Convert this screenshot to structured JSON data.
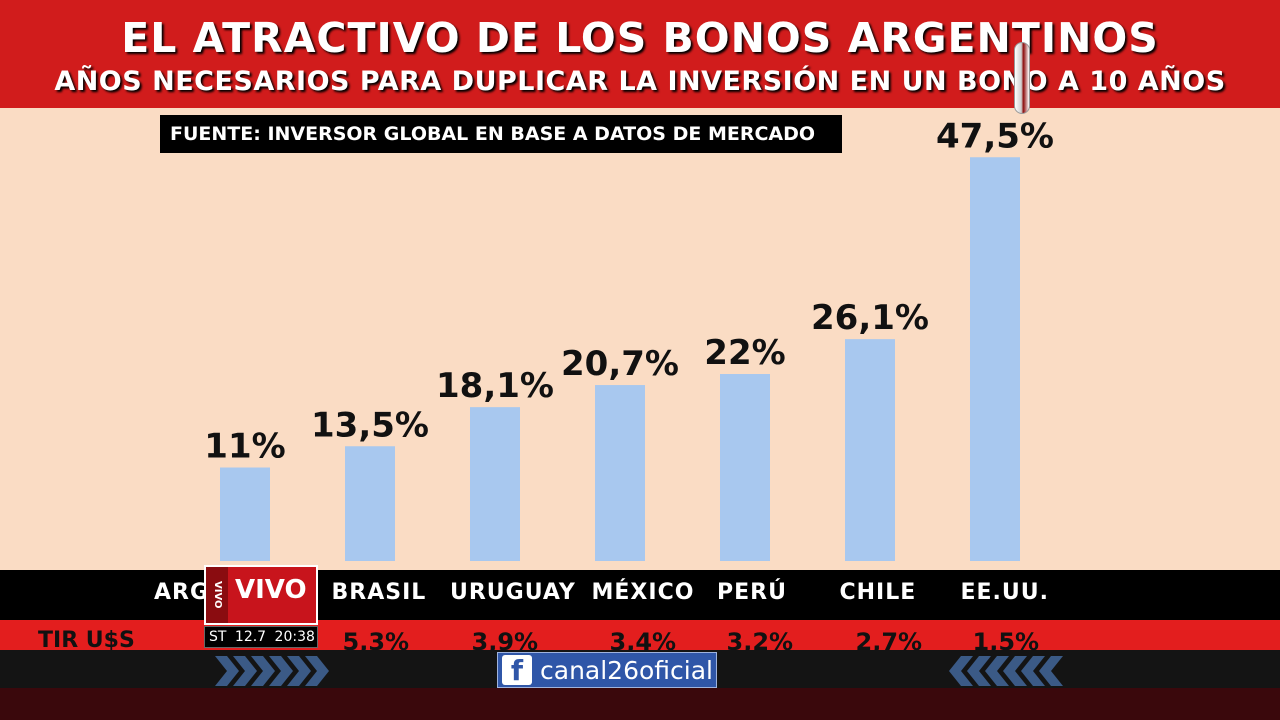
{
  "header": {
    "title": "EL ATRACTIVO DE LOS BONOS ARGENTINOS",
    "subtitle": "AÑOS NECESARIOS PARA DUPLICAR LA INVERSIÓN EN UN BONO A 10 AÑOS"
  },
  "source_label": "FUENTE: INVERSOR GLOBAL EN BASE A DATOS DE MERCADO",
  "chart_data": {
    "type": "bar",
    "title": "EL ATRACTIVO DE LOS BONOS ARGENTINOS",
    "subtitle": "AÑOS NECESARIOS PARA DUPLICAR LA INVERSIÓN EN UN BONO A 10 AÑOS",
    "categories": [
      "ARGENTINA",
      "BRASIL",
      "URUGUAY",
      "MÉXICO",
      "PERÚ",
      "CHILE",
      "EE.UU."
    ],
    "category_labels_visible": [
      "ARG",
      "BRASIL",
      "URUGUAY",
      "MÉXICO",
      "PERÚ",
      "CHILE",
      "EE.UU."
    ],
    "values": [
      11,
      13.5,
      18.1,
      20.7,
      22,
      26.1,
      47.5
    ],
    "value_labels": [
      "11%",
      "13,5%",
      "18,1%",
      "20,7%",
      "22%",
      "26,1%",
      "47,5%"
    ],
    "bar_color": "#a8c8ef",
    "background_color": "#fadcc4",
    "grid": false,
    "legend": "none",
    "row_label": "TIR U$S",
    "row_values_visible": [
      "",
      "5,3%",
      "3,9%",
      "3,4%",
      "3,2%",
      "2,7%",
      "1,5%"
    ]
  },
  "overlay": {
    "live_badge": "VIVO",
    "live_small": "VIVO",
    "clock_channel": "ST",
    "clock_temp": "12.7",
    "clock_time": "20:38",
    "facebook_icon": "f",
    "facebook_handle": "canal26oficial",
    "brand_red": "#d11c1c",
    "facebook_blue": "#2f56a8"
  }
}
